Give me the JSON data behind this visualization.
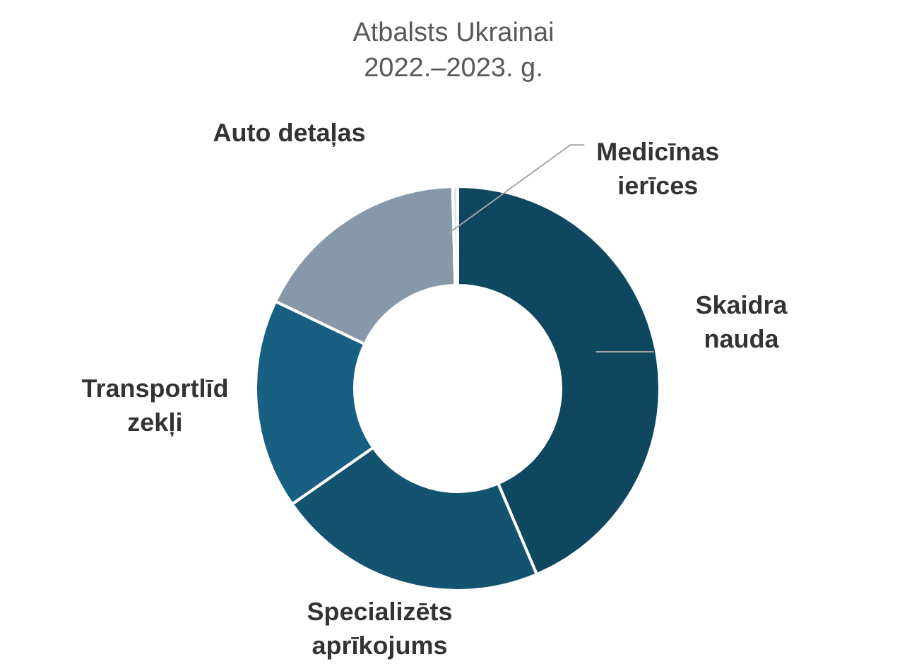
{
  "chart_data": {
    "type": "donut",
    "title": "Atbalsts Ukrainai",
    "subtitle": "2022.–2023. g.",
    "categories": [
      "Skaidra nauda",
      "Specializēts aprīkojums",
      "Transportlīdzekļi",
      "Auto detaļas",
      "Medicīnas ierīces"
    ],
    "values": [
      43.6,
      21.7,
      16.8,
      17.5,
      0.4
    ],
    "colors": [
      "#0f4760",
      "#135370",
      "#185f82",
      "#8698aa",
      "#dce3e8"
    ]
  }
}
